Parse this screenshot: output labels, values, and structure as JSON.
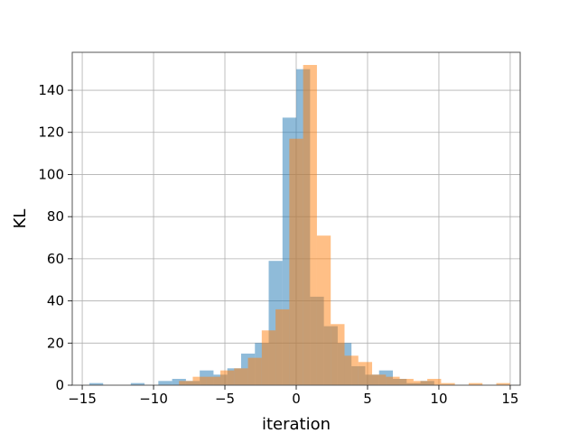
{
  "chart_data": {
    "type": "bar",
    "subtype": "overlaid-histogram",
    "title": "",
    "xlabel": "iteration",
    "ylabel": "KL",
    "xlim": [
      -15.7,
      15.7
    ],
    "ylim": [
      0,
      158
    ],
    "grid": true,
    "legend": "none",
    "bin_width": 0.967,
    "x_ticks": [
      -15,
      -10,
      -5,
      0,
      5,
      10,
      15
    ],
    "y_ticks": [
      0,
      20,
      40,
      60,
      80,
      100,
      120,
      140
    ],
    "series": [
      {
        "color": "#1f77b4",
        "opacity": 0.5,
        "bin_start": -14.5,
        "counts": [
          1,
          0,
          0,
          1,
          0,
          2,
          3,
          2,
          7,
          5,
          8,
          15,
          20,
          59,
          127,
          150,
          42,
          28,
          20,
          9,
          5,
          7,
          3,
          1,
          2,
          0,
          0,
          0,
          0,
          0
        ]
      },
      {
        "color": "#ff7f0e",
        "opacity": 0.5,
        "bin_start": -14.02,
        "counts": [
          0,
          0,
          0,
          0,
          0,
          0,
          2,
          4,
          4,
          7,
          8,
          13,
          26,
          36,
          117,
          152,
          71,
          29,
          14,
          11,
          5,
          4,
          3,
          2,
          3,
          1,
          0,
          1,
          0,
          1
        ]
      }
    ]
  }
}
